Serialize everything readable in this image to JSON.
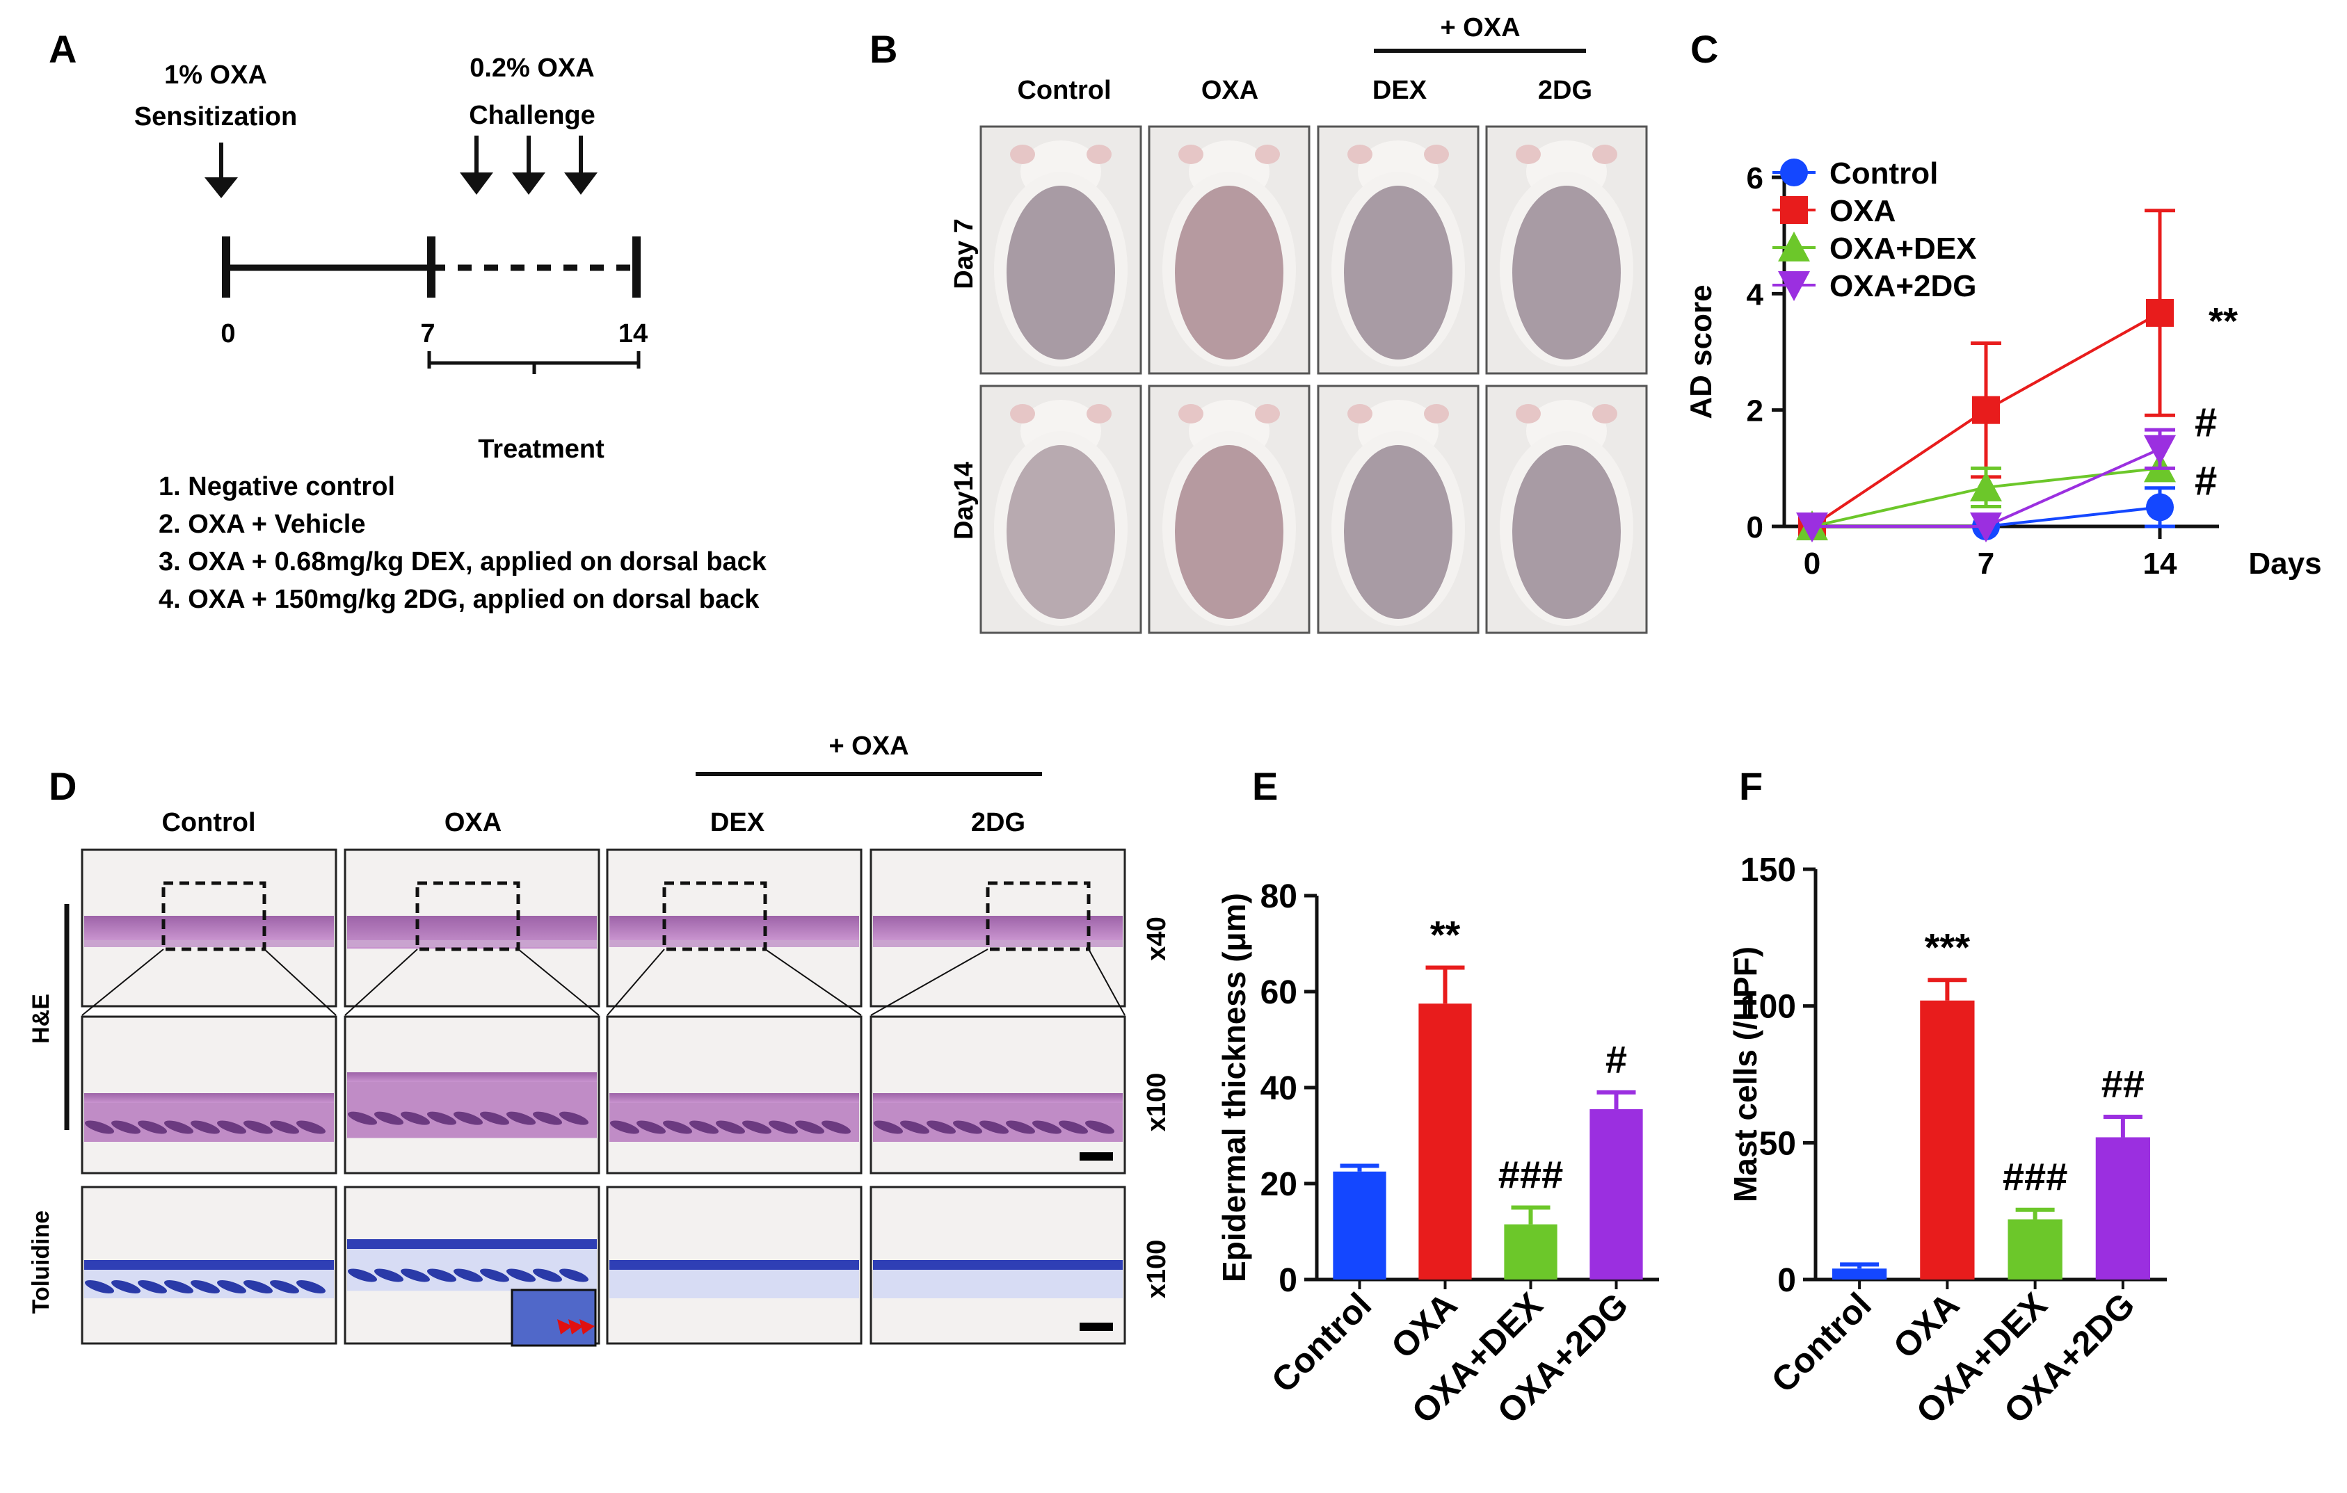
{
  "panels": {
    "A": {
      "label": "A",
      "sensitization": [
        "1% OXA",
        "Sensitization"
      ],
      "challenge": [
        "0.2% OXA",
        "Challenge"
      ],
      "ticks": [
        "0",
        "7",
        "14"
      ],
      "treatment_title": "Treatment",
      "treatments": [
        "1. Negative control",
        "2. OXA + Vehicle",
        "3. OXA + 0.68mg/kg DEX, applied on dorsal back",
        "4. OXA + 150mg/kg 2DG, applied on dorsal back"
      ]
    },
    "B": {
      "label": "B",
      "oxa_bracket": "+ OXA",
      "columns": [
        "Control",
        "OXA",
        "DEX",
        "2DG"
      ],
      "rows": [
        "Day 7",
        "Day14"
      ]
    },
    "D": {
      "label": "D",
      "oxa_bracket": "+ OXA",
      "columns": [
        "Control",
        "OXA",
        "DEX",
        "2DG"
      ],
      "stain_he": "H&E",
      "stain_tol": "Toluidine",
      "magnifications": [
        "x40",
        "x100",
        "x100"
      ]
    },
    "C": {
      "label": "C"
    },
    "E": {
      "label": "E"
    },
    "F": {
      "label": "F"
    }
  },
  "colors": {
    "control": "#1447ff",
    "oxa": "#e81c1c",
    "dex": "#6cc72a",
    "twodg": "#9b2fe0"
  },
  "chart_data": [
    {
      "panel": "C",
      "type": "line",
      "xlabel": "Days",
      "ylabel": "AD score",
      "x": [
        0,
        7,
        14
      ],
      "xticks": [
        "0",
        "7",
        "14"
      ],
      "ylim": [
        0,
        6
      ],
      "yticks": [
        0,
        2,
        4,
        6
      ],
      "series": [
        {
          "name": "Control",
          "values": [
            0,
            0,
            0.33
          ],
          "err": [
            0,
            0,
            0.33
          ],
          "marker": "circle",
          "color": "#1447ff"
        },
        {
          "name": "OXA",
          "values": [
            0,
            2.0,
            3.67
          ],
          "err": [
            0,
            1.15,
            1.76
          ],
          "marker": "square",
          "color": "#e81c1c"
        },
        {
          "name": "OXA+DEX",
          "values": [
            0,
            0.67,
            1.0
          ],
          "err": [
            0,
            0.33,
            0
          ],
          "marker": "triangle",
          "color": "#6cc72a"
        },
        {
          "name": "OXA+2DG",
          "values": [
            0,
            0,
            1.33
          ],
          "err": [
            0,
            0,
            0.33
          ],
          "marker": "tri-down",
          "color": "#9b2fe0"
        }
      ],
      "annotations": [
        {
          "text": "**",
          "x": 14,
          "y": 3.67
        },
        {
          "text": "#",
          "x": 14,
          "y": 1.67
        },
        {
          "text": "#",
          "x": 14,
          "y": 1.0
        }
      ]
    },
    {
      "panel": "E",
      "type": "bar",
      "ylabel": "Epidermal thickness (μm)",
      "categories": [
        "Control",
        "OXA",
        "OXA+DEX",
        "OXA+2DG"
      ],
      "values": [
        22.5,
        57.5,
        11.5,
        35.5
      ],
      "errors": [
        1.2,
        7.5,
        3.5,
        3.5
      ],
      "annotations": [
        "",
        "**",
        "###",
        "#"
      ],
      "ylim": [
        0,
        80
      ],
      "yticks": [
        0,
        20,
        40,
        60,
        80
      ]
    },
    {
      "panel": "F",
      "type": "bar",
      "ylabel": "Mast cells (/HPF)",
      "categories": [
        "Control",
        "OXA",
        "OXA+DEX",
        "OXA+2DG"
      ],
      "values": [
        4,
        102,
        22,
        52
      ],
      "errors": [
        1.5,
        7.5,
        3.5,
        7.5
      ],
      "annotations": [
        "",
        "***",
        "###",
        "##"
      ],
      "ylim": [
        0,
        150
      ],
      "yticks": [
        0,
        50,
        100,
        150
      ]
    }
  ]
}
